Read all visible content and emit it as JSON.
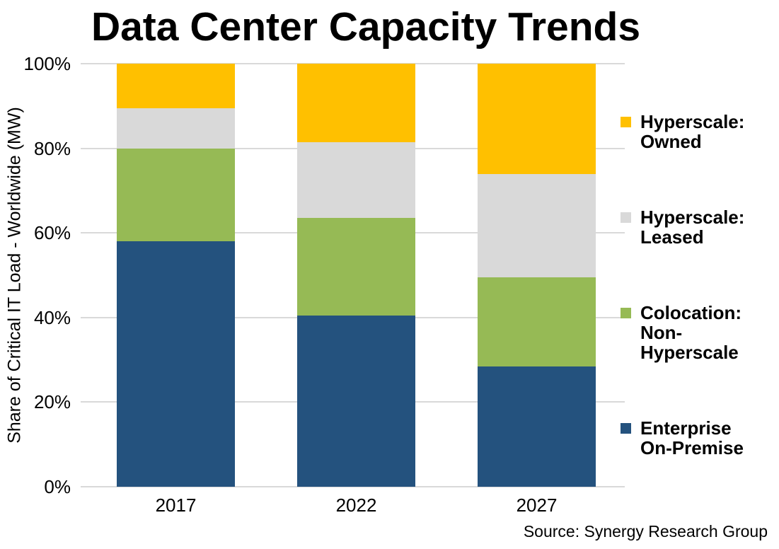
{
  "chart_data": {
    "type": "bar",
    "stacked": true,
    "title": "Data Center Capacity Trends",
    "ylabel": "Share of Critical IT Load - Worldwide (MW)",
    "xlabel": "",
    "categories": [
      "2017",
      "2022",
      "2027"
    ],
    "series": [
      {
        "name": "Enterprise On-Premise",
        "legend_lines": [
          "Enterprise",
          "On-Premise"
        ],
        "color": "#24527E",
        "values": [
          58,
          40.5,
          28.5
        ]
      },
      {
        "name": "Colocation: Non-Hyperscale",
        "legend_lines": [
          "Colocation:",
          "Non-Hyperscale"
        ],
        "color": "#96BA55",
        "values": [
          22,
          23,
          21
        ]
      },
      {
        "name": "Hyperscale: Leased",
        "legend_lines": [
          "Hyperscale:",
          "Leased"
        ],
        "color": "#D9D9D9",
        "values": [
          9.5,
          18,
          24.5
        ]
      },
      {
        "name": "Hyperscale: Owned",
        "legend_lines": [
          "Hyperscale:",
          "Owned"
        ],
        "color": "#FFC000",
        "values": [
          10.5,
          18.5,
          26
        ]
      }
    ],
    "y_ticks": [
      {
        "label": "0%",
        "value": 0
      },
      {
        "label": "20%",
        "value": 20
      },
      {
        "label": "40%",
        "value": 40
      },
      {
        "label": "60%",
        "value": 60
      },
      {
        "label": "80%",
        "value": 80
      },
      {
        "label": "100%",
        "value": 100
      }
    ],
    "ylim": [
      0,
      100
    ],
    "grid": true,
    "legend_position": "right",
    "source": "Source: Synergy Research Group"
  }
}
